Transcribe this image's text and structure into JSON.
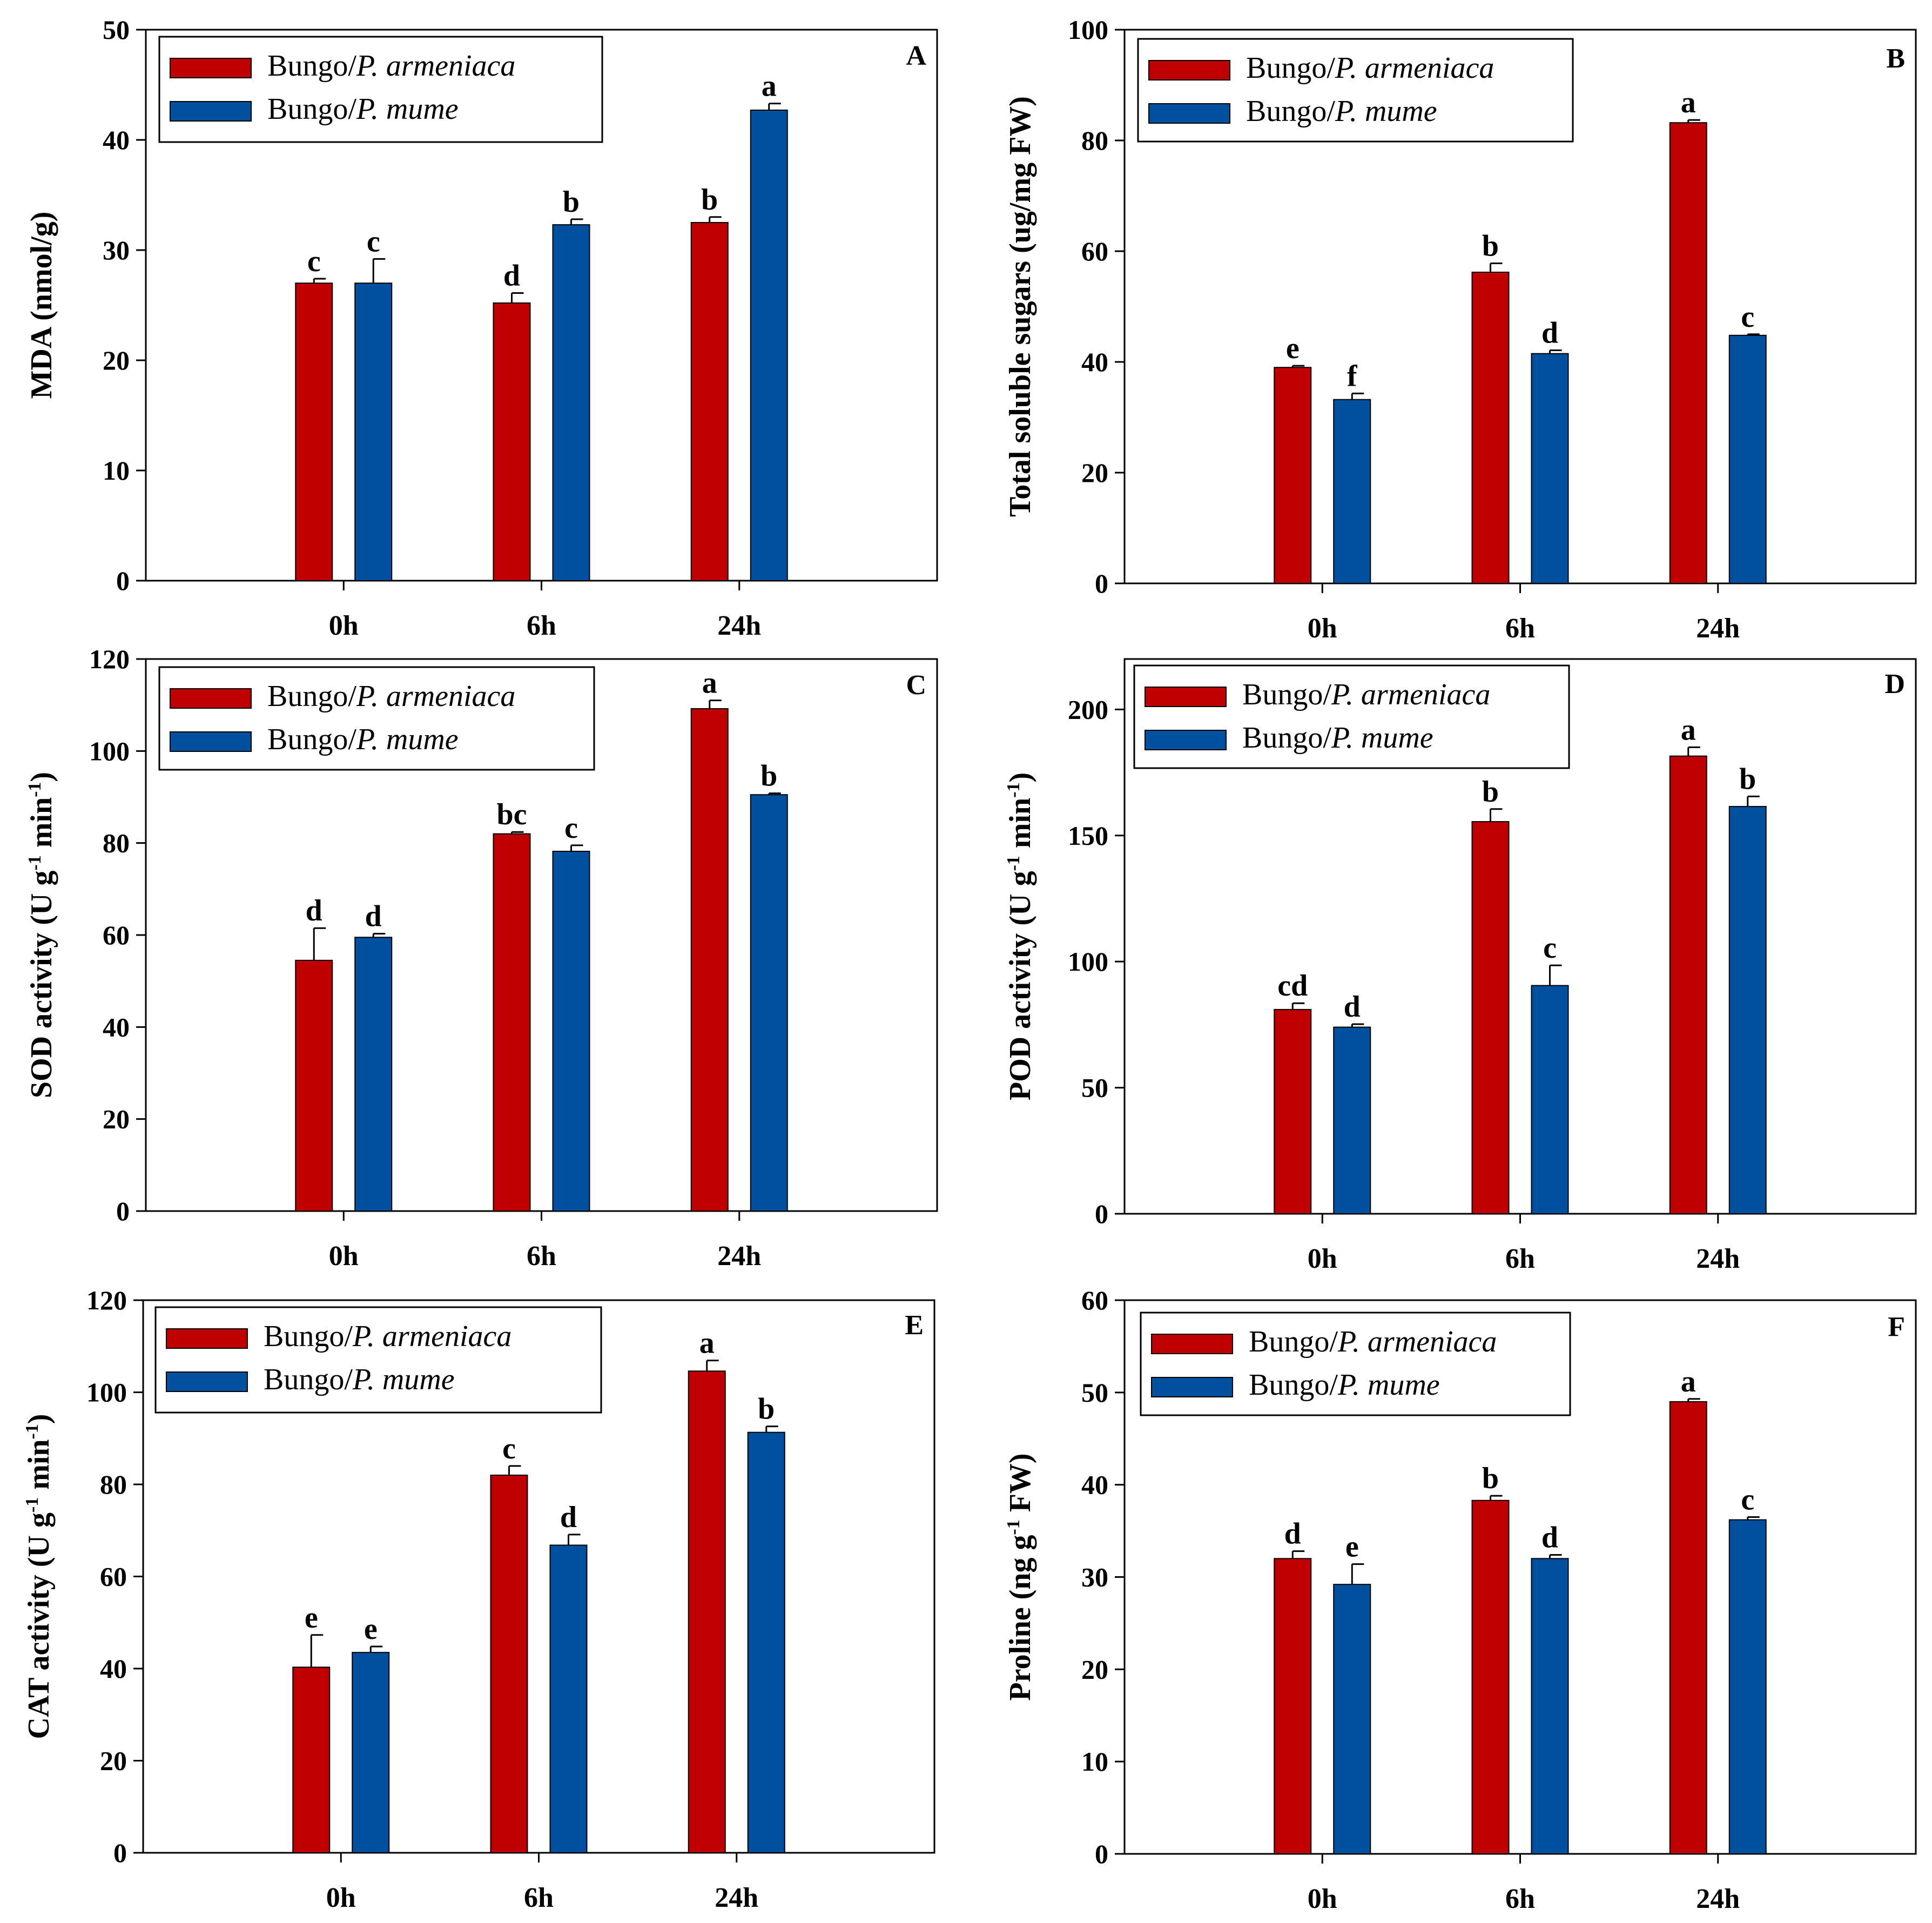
{
  "colors": {
    "armeniaca": "#c00000",
    "mume": "#0050a0"
  },
  "legend": {
    "series1_prefix": "Bungo/",
    "series1_italic": "P. armeniaca",
    "series2_prefix": "Bungo/",
    "series2_italic": "P. mume"
  },
  "chart_data": [
    {
      "type": "bar",
      "panel": "A",
      "title": "",
      "xlabel": "",
      "ylabel": "MDA (nmol/g)",
      "ylabel_parts": [
        {
          "t": "MDA (nmol/g)"
        }
      ],
      "categories": [
        "0h",
        "6h",
        "24h"
      ],
      "ylim": [
        0,
        50
      ],
      "yticks": [
        0,
        10,
        20,
        30,
        40,
        50
      ],
      "series": [
        {
          "name": "Bungo/P. armeniaca",
          "values": [
            27,
            25.2,
            32.5
          ],
          "errors": [
            0.4,
            0.9,
            0.5
          ],
          "letters": [
            "c",
            "d",
            "b"
          ]
        },
        {
          "name": "Bungo/P. mume",
          "values": [
            27,
            32.3,
            42.7
          ],
          "errors": [
            2.2,
            0.5,
            0.6
          ],
          "letters": [
            "c",
            "b",
            "a"
          ]
        }
      ]
    },
    {
      "type": "bar",
      "panel": "B",
      "title": "",
      "xlabel": "",
      "ylabel": "Total soluble sugars (ug/mg FW)",
      "ylabel_parts": [
        {
          "t": "Total soluble sugars (ug/mg FW)"
        }
      ],
      "categories": [
        "0h",
        "6h",
        "24h"
      ],
      "ylim": [
        0,
        100
      ],
      "yticks": [
        0,
        20,
        40,
        60,
        80,
        100
      ],
      "series": [
        {
          "name": "Bungo/P. armeniaca",
          "values": [
            39,
            56.2,
            83.2
          ],
          "errors": [
            0.3,
            1.6,
            0.5
          ],
          "letters": [
            "e",
            "b",
            "a"
          ]
        },
        {
          "name": "Bungo/P. mume",
          "values": [
            33.2,
            41.5,
            44.8
          ],
          "errors": [
            1.1,
            0.6,
            0.2
          ],
          "letters": [
            "f",
            "d",
            "c"
          ]
        }
      ]
    },
    {
      "type": "bar",
      "panel": "C",
      "title": "",
      "xlabel": "",
      "ylabel": "SOD activity (U g-1 min-1)",
      "ylabel_parts": [
        {
          "t": "SOD activity (U g"
        },
        {
          "t": "-1",
          "sup": true
        },
        {
          "t": " min"
        },
        {
          "t": "-1",
          "sup": true
        },
        {
          "t": ")"
        }
      ],
      "categories": [
        "0h",
        "6h",
        "24h"
      ],
      "ylim": [
        0,
        120
      ],
      "yticks": [
        0,
        20,
        40,
        60,
        80,
        100,
        120
      ],
      "series": [
        {
          "name": "Bungo/P. armeniaca",
          "values": [
            54.5,
            82,
            109.2
          ],
          "errors": [
            7,
            0.4,
            1.8
          ],
          "letters": [
            "d",
            "bc",
            "a"
          ]
        },
        {
          "name": "Bungo/P. mume",
          "values": [
            59.5,
            78.2,
            90.5
          ],
          "errors": [
            0.8,
            1.3,
            0.3
          ],
          "letters": [
            "d",
            "c",
            "b"
          ]
        }
      ]
    },
    {
      "type": "bar",
      "panel": "D",
      "title": "",
      "xlabel": "",
      "ylabel": "POD activity (U g-1 min-1)",
      "ylabel_parts": [
        {
          "t": "POD activity (U g"
        },
        {
          "t": "-1",
          "sup": true
        },
        {
          "t": " min"
        },
        {
          "t": "-1",
          "sup": true
        },
        {
          "t": ")"
        }
      ],
      "categories": [
        "0h",
        "6h",
        "24h"
      ],
      "ylim": [
        0,
        220
      ],
      "yticks": [
        0,
        50,
        100,
        150,
        200
      ],
      "series": [
        {
          "name": "Bungo/P. armeniaca",
          "values": [
            81,
            155.5,
            181.5
          ],
          "errors": [
            2.5,
            5,
            3.5
          ],
          "letters": [
            "cd",
            "b",
            "a"
          ]
        },
        {
          "name": "Bungo/P. mume",
          "values": [
            74,
            90.5,
            161.5
          ],
          "errors": [
            1.2,
            8,
            4
          ],
          "letters": [
            "d",
            "c",
            "b"
          ]
        }
      ]
    },
    {
      "type": "bar",
      "panel": "E",
      "title": "",
      "xlabel": "",
      "ylabel": "CAT activity (U g-1 min-1)",
      "ylabel_parts": [
        {
          "t": "CAT activity (U g"
        },
        {
          "t": "-1",
          "sup": true
        },
        {
          "t": " min"
        },
        {
          "t": "-1",
          "sup": true
        },
        {
          "t": ")"
        }
      ],
      "categories": [
        "0h",
        "6h",
        "24h"
      ],
      "ylim": [
        0,
        120
      ],
      "yticks": [
        0,
        20,
        40,
        60,
        80,
        100,
        120
      ],
      "series": [
        {
          "name": "Bungo/P. armeniaca",
          "values": [
            40.3,
            82,
            104.6
          ],
          "errors": [
            7,
            2,
            2.3
          ],
          "letters": [
            "e",
            "c",
            "a"
          ]
        },
        {
          "name": "Bungo/P. mume",
          "values": [
            43.5,
            66.8,
            91.3
          ],
          "errors": [
            1.3,
            2.3,
            1.3
          ],
          "letters": [
            "e",
            "d",
            "b"
          ]
        }
      ]
    },
    {
      "type": "bar",
      "panel": "F",
      "title": "",
      "xlabel": "",
      "ylabel": "Proline (ng g-1 FW)",
      "ylabel_parts": [
        {
          "t": "Proline (ng g"
        },
        {
          "t": "-1",
          "sup": true
        },
        {
          "t": " FW)"
        }
      ],
      "categories": [
        "0h",
        "6h",
        "24h"
      ],
      "ylim": [
        0,
        60
      ],
      "yticks": [
        0,
        10,
        20,
        30,
        40,
        50,
        60
      ],
      "series": [
        {
          "name": "Bungo/P. armeniaca",
          "values": [
            32,
            38.3,
            49
          ],
          "errors": [
            0.8,
            0.5,
            0.3
          ],
          "letters": [
            "d",
            "b",
            "a"
          ]
        },
        {
          "name": "Bungo/P. mume",
          "values": [
            29.2,
            32,
            36.2
          ],
          "errors": [
            2.2,
            0.4,
            0.3
          ],
          "letters": [
            "e",
            "d",
            "c"
          ]
        }
      ]
    }
  ]
}
